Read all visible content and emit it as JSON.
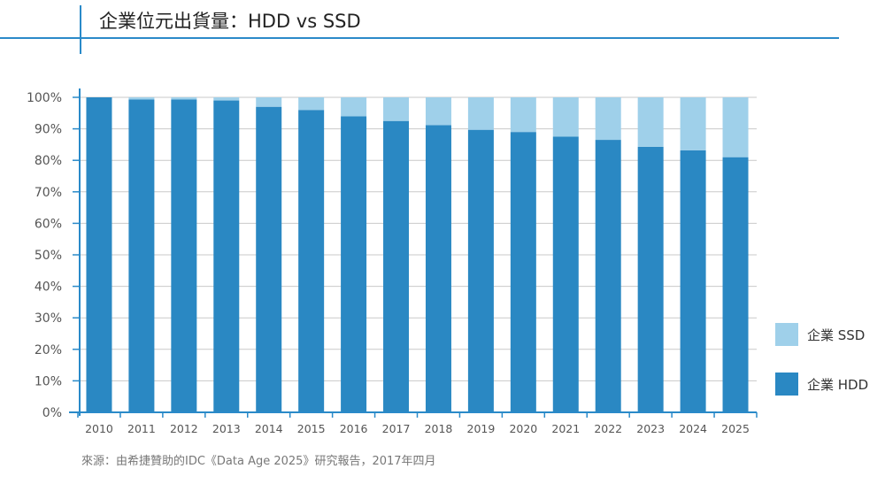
{
  "title": "企業位元出貨量：HDD vs SSD",
  "source": "來源：由希捷贊助的IDC《Data Age 2025》研究報告，2017年四月",
  "chart_data": {
    "type": "bar",
    "stacked": true,
    "categories": [
      "2010",
      "2011",
      "2012",
      "2013",
      "2014",
      "2015",
      "2016",
      "2017",
      "2018",
      "2019",
      "2020",
      "2021",
      "2022",
      "2023",
      "2024",
      "2025"
    ],
    "series": [
      {
        "name": "企業 HDD",
        "color": "#2a88c3",
        "values": [
          100,
          99.3,
          99.3,
          99,
          97,
          96,
          94,
          92.5,
          91.2,
          89.7,
          89,
          87.5,
          86.5,
          84.3,
          83.2,
          81
        ]
      },
      {
        "name": "企業 SSD",
        "color": "#9fd0ea",
        "values": [
          0,
          0.7,
          0.7,
          1,
          3,
          4,
          6,
          7.5,
          8.8,
          10.3,
          11,
          12.5,
          13.5,
          15.7,
          16.8,
          19
        ]
      }
    ],
    "y_ticks": [
      "0%",
      "10%",
      "20%",
      "30%",
      "40%",
      "50%",
      "60%",
      "70%",
      "80%",
      "90%",
      "100%"
    ],
    "ylim": [
      0,
      100
    ],
    "grid": true,
    "legend_position": "right"
  }
}
